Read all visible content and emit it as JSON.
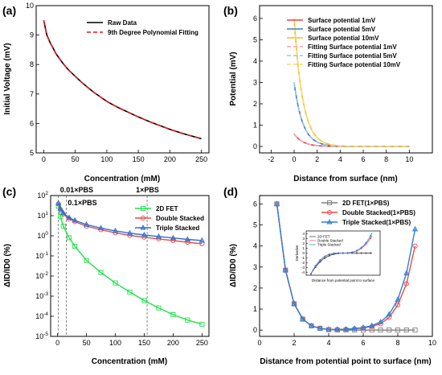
{
  "chart_data": [
    {
      "panel": "(a)",
      "type": "line",
      "xlabel": "Concentration (mM)",
      "ylabel": "Initial Voltage (mV)",
      "xlim": [
        -12,
        262
      ],
      "ylim": [
        5,
        10
      ],
      "xticks": [
        "0",
        "50",
        "100",
        "150",
        "200",
        "250"
      ],
      "yticks": [
        "5",
        "6",
        "7",
        "8",
        "9",
        "10"
      ],
      "legend_position": "top-right",
      "series": [
        {
          "name": "Raw Data",
          "color": "#000000",
          "dash": "solid",
          "x": [
            0,
            5,
            10,
            20,
            30,
            40,
            50,
            60,
            70,
            80,
            90,
            100,
            110,
            120,
            130,
            140,
            150,
            160,
            170,
            180,
            190,
            200,
            210,
            220,
            230,
            240,
            250
          ],
          "y": [
            9.5,
            9.0,
            8.75,
            8.35,
            8.05,
            7.8,
            7.6,
            7.4,
            7.22,
            7.05,
            6.9,
            6.75,
            6.63,
            6.52,
            6.42,
            6.32,
            6.22,
            6.13,
            6.04,
            5.96,
            5.88,
            5.8,
            5.73,
            5.66,
            5.6,
            5.54,
            5.48
          ]
        },
        {
          "name": "9th Degree Polynomial Fitting",
          "color": "#e8141c",
          "dash": "dashed",
          "x": [
            0,
            5,
            10,
            20,
            30,
            40,
            50,
            60,
            70,
            80,
            90,
            100,
            110,
            120,
            130,
            140,
            150,
            160,
            170,
            180,
            190,
            200,
            210,
            220,
            230,
            240,
            250
          ],
          "y": [
            9.5,
            9.0,
            8.75,
            8.35,
            8.05,
            7.8,
            7.6,
            7.4,
            7.22,
            7.05,
            6.9,
            6.75,
            6.63,
            6.52,
            6.42,
            6.32,
            6.22,
            6.13,
            6.04,
            5.96,
            5.88,
            5.8,
            5.73,
            5.66,
            5.6,
            5.54,
            5.48
          ]
        }
      ]
    },
    {
      "panel": "(b)",
      "type": "line",
      "xlabel": "Distance from surface (nm)",
      "ylabel": "Potential (mV)",
      "xlim": [
        -3,
        12
      ],
      "ylim": [
        -0.3,
        6.6
      ],
      "xticks": [
        "-2",
        "0",
        "2",
        "4",
        "6",
        "8",
        "10"
      ],
      "yticks": [
        "0",
        "1",
        "2",
        "3",
        "4",
        "5",
        "6"
      ],
      "legend_position": "top-right",
      "series": [
        {
          "name": "Surface potential 1mV",
          "color": "#e8444a",
          "dash": "solid",
          "amplitude": 0.6,
          "x_range": [
            0,
            10
          ]
        },
        {
          "name": "Surface potential 5mV",
          "color": "#3a7fc4",
          "dash": "solid",
          "amplitude": 3.0,
          "x_range": [
            0,
            10
          ]
        },
        {
          "name": "Surface potential 10mV",
          "color": "#f2c21b",
          "dash": "solid",
          "amplitude": 6.0,
          "x_range": [
            0,
            10
          ]
        },
        {
          "name": "Fitting Surface potential 1mV",
          "color": "#f4a6a8",
          "dash": "dashed",
          "amplitude": 0.6,
          "x_range": [
            0,
            10
          ]
        },
        {
          "name": "Fitting Surface potential 5mV",
          "color": "#9ec3e6",
          "dash": "dashed",
          "amplitude": 3.0,
          "x_range": [
            0,
            10
          ]
        },
        {
          "name": "Fitting Surface potential 10mV",
          "color": "#f7db7a",
          "dash": "dashed",
          "amplitude": 6.0,
          "x_range": [
            0,
            10
          ]
        }
      ]
    },
    {
      "panel": "(c)",
      "type": "line",
      "xlabel": "Concentration (mM)",
      "ylabel": "ΔID/ID0 (%)",
      "yscale": "log",
      "xlim": [
        -12,
        262
      ],
      "ylim": [
        1e-05,
        100
      ],
      "xticks": [
        "0",
        "50",
        "100",
        "150",
        "200",
        "250"
      ],
      "yticks": [
        "10-5",
        "10-4",
        "10-3",
        "10-2",
        "10-1",
        "100",
        "101",
        "102"
      ],
      "legend_position": "top-right",
      "annotations": [
        {
          "text": "0.01×PBS",
          "x": 1.5
        },
        {
          "text": "0.1×PBS",
          "x": 15
        },
        {
          "text": "1×PBS",
          "x": 155
        }
      ],
      "series": [
        {
          "name": "2D FET",
          "color": "#22e04a",
          "marker": "square",
          "x": [
            1.5,
            5,
            10,
            20,
            30,
            50,
            75,
            100,
            125,
            150,
            175,
            200,
            225,
            250
          ],
          "y": [
            30,
            9,
            3,
            0.8,
            0.3,
            0.06,
            0.015,
            0.0045,
            0.0016,
            0.0006,
            0.00026,
            0.00012,
            6.5e-05,
            4e-05
          ]
        },
        {
          "name": "Double Stacked",
          "color": "#e84a4a",
          "marker": "circle",
          "x": [
            1.5,
            5,
            10,
            20,
            30,
            50,
            75,
            100,
            125,
            150,
            175,
            200,
            225,
            250
          ],
          "y": [
            38,
            20,
            12,
            7,
            5,
            3,
            2,
            1.4,
            1.05,
            0.85,
            0.7,
            0.58,
            0.48,
            0.4
          ]
        },
        {
          "name": "Triple   Stacked",
          "color": "#2f6fd0",
          "marker": "triangle",
          "x": [
            1.5,
            5,
            10,
            20,
            30,
            50,
            75,
            100,
            125,
            150,
            175,
            200,
            225,
            250
          ],
          "y": [
            42,
            22,
            13.5,
            8,
            5.8,
            3.6,
            2.4,
            1.75,
            1.35,
            1.1,
            0.92,
            0.78,
            0.66,
            0.58
          ]
        }
      ]
    },
    {
      "panel": "(d)",
      "type": "line",
      "xlabel": "Distance from potential point to surface (nm)",
      "ylabel": "ΔID/ID0 (%)",
      "xlim": [
        0,
        10
      ],
      "ylim": [
        -0.3,
        6.4
      ],
      "xticks": [
        "0",
        "2",
        "4",
        "6",
        "8",
        "10"
      ],
      "yticks": [
        "0",
        "1",
        "2",
        "3",
        "4",
        "5",
        "6"
      ],
      "legend_position": "top-right",
      "series": [
        {
          "name": "2D FET(1×PBS)",
          "color": "#7f7f7f",
          "marker": "square",
          "x": [
            1,
            1.5,
            2,
            2.5,
            3,
            3.5,
            4,
            4.5,
            5,
            5.5,
            6,
            6.5,
            7,
            7.5,
            8,
            8.5,
            9
          ],
          "y": [
            6.0,
            2.85,
            1.25,
            0.52,
            0.2,
            0.08,
            0.02,
            0.0,
            0.0,
            0.0,
            0.0,
            0.0,
            0.0,
            0.0,
            0.0,
            0.0,
            0.0
          ]
        },
        {
          "name": "Double Stacked(1×PBS)",
          "color": "#e84a4a",
          "marker": "circle",
          "x": [
            1,
            1.5,
            2,
            2.5,
            3,
            3.5,
            4,
            4.5,
            5,
            5.5,
            6,
            6.5,
            7,
            7.5,
            8,
            8.5,
            9
          ],
          "y": [
            6.0,
            2.85,
            1.25,
            0.52,
            0.2,
            0.08,
            0.03,
            0.03,
            0.04,
            0.06,
            0.1,
            0.17,
            0.3,
            0.6,
            1.2,
            2.2,
            4.0
          ]
        },
        {
          "name": "Triple Stacked(1×PBS)",
          "color": "#2f7fd8",
          "marker": "triangle",
          "x": [
            1,
            1.5,
            2,
            2.5,
            3,
            3.5,
            4,
            4.5,
            5,
            5.5,
            6,
            6.5,
            7,
            7.5,
            8,
            8.5,
            9
          ],
          "y": [
            6.0,
            2.85,
            1.25,
            0.52,
            0.2,
            0.08,
            0.03,
            0.03,
            0.04,
            0.07,
            0.12,
            0.21,
            0.38,
            0.75,
            1.45,
            2.7,
            4.8
          ]
        }
      ],
      "inset": {
        "xlabel": "Distance from potential point to surface",
        "ylabel": "Derivative",
        "yticks": [
          "-4",
          "-3",
          "-2",
          "-1",
          "0",
          "1",
          "2",
          "3",
          "4"
        ],
        "legend": [
          "2D FET",
          "Double Stacked",
          "Triple Stacked"
        ]
      }
    }
  ]
}
